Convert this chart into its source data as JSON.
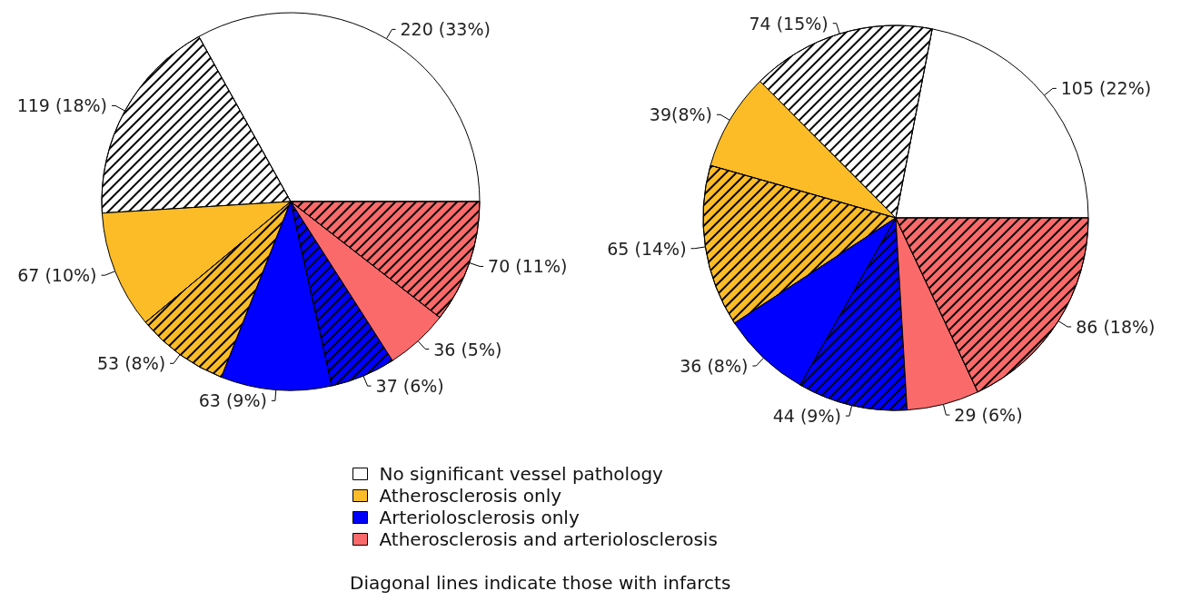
{
  "chart_data": [
    {
      "type": "pie",
      "categories": [
        "No significant vessel pathology",
        null,
        "Atherosclerosis only",
        null,
        "Arteriolosclerosis only",
        null,
        "Atherosclerosis and arteriolosclerosis",
        null
      ],
      "values": [
        220,
        119,
        67,
        53,
        63,
        37,
        36,
        70
      ],
      "colors": [
        "#ffffff",
        "#ffffff",
        "#fbbc27",
        "#fbbc27",
        "#0000ff",
        "#0000ff",
        "#fb6a6a",
        "#fb6a6a"
      ],
      "value_labels": [
        "220 (33%)",
        "119 (18%)",
        "67 (10%)",
        "53 (8%)",
        "63 (9%)",
        "37 (6%)",
        "36 (5%)",
        "70 (11%)"
      ],
      "legend": "bottom",
      "annotations": [
        "Diagonal lines indicate those with infarcts"
      ]
    },
    {
      "type": "pie",
      "categories": [
        null,
        null,
        null,
        null,
        null,
        null,
        null,
        null
      ],
      "values": [
        105,
        74,
        39,
        65,
        36,
        44,
        29,
        86
      ],
      "colors": [
        "#ffffff",
        "#ffffff",
        "#fbbc27",
        "#fbbc27",
        "#0000ff",
        "#0000ff",
        "#fb6a6a",
        "#fb6a6a"
      ],
      "value_labels": [
        "105 (22%)",
        "74 (15%)",
        "39(8%)",
        "65 (14%)",
        "36 (8%)",
        "44 (9%)",
        "29 (6%)",
        "86 (18%)"
      ]
    }
  ]
}
